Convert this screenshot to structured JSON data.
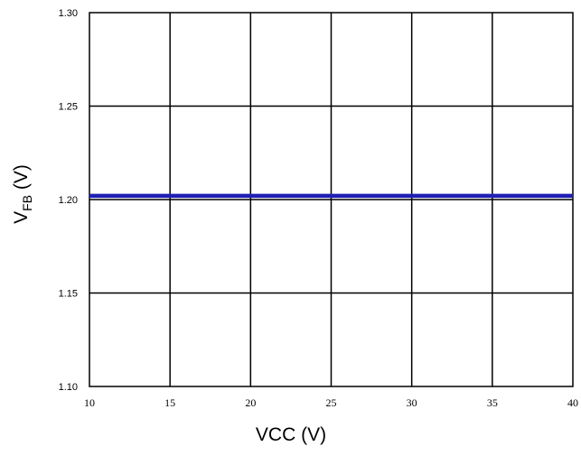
{
  "chart_data": {
    "type": "line",
    "xlabel": "VCC (V)",
    "ylabel": {
      "main": "V",
      "subscript": "FB",
      "unit": " (V)"
    },
    "xlim": [
      10,
      40
    ],
    "ylim": [
      1.1,
      1.3
    ],
    "xticks": [
      10,
      15,
      20,
      25,
      30,
      35,
      40
    ],
    "yticks": [
      1.1,
      1.15,
      1.2,
      1.25,
      1.3
    ],
    "xtick_labels": [
      "10",
      "15",
      "20",
      "25",
      "30",
      "35",
      "40"
    ],
    "ytick_labels": [
      "1.10",
      "1.15",
      "1.20",
      "1.25",
      "1.30"
    ],
    "grid": true,
    "series": [
      {
        "color": "#1f1fb4",
        "x": [
          10,
          15,
          20,
          25,
          30,
          35,
          40
        ],
        "y": [
          1.202,
          1.202,
          1.202,
          1.202,
          1.202,
          1.202,
          1.202
        ]
      }
    ]
  }
}
